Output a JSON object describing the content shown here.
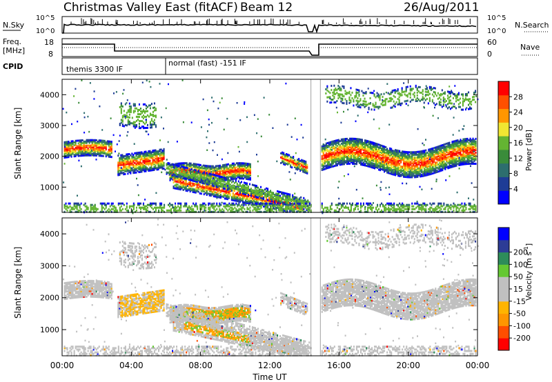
{
  "header": {
    "title": "Christmas Valley East (fitACF)",
    "beam": "Beam 12",
    "date": "26/Aug/2011"
  },
  "nsky_panel": {
    "left_label": "N.Sky",
    "right_label": "N.Search",
    "left_ticks": [
      "10^5",
      "10^0"
    ],
    "right_ticks": [
      "10^5",
      "10^0"
    ]
  },
  "freq_panel": {
    "left_label_1": "Freq.",
    "left_label_2": "[MHz]",
    "right_label": "Nave",
    "left_ticks": [
      "18",
      "8"
    ],
    "right_ticks": [
      "60",
      "0"
    ]
  },
  "cpid_panel": {
    "label": "CPID",
    "program_1": "themis 3300 IF",
    "program_2": "normal (fast) -151 IF"
  },
  "colors": {
    "power_scale": [
      "#0000ff",
      "#1e3c96",
      "#2d6e6e",
      "#3a8c3a",
      "#64b432",
      "#f0e632",
      "#ff9600",
      "#ff5000",
      "#ff0000"
    ],
    "velocity_scale": [
      "#ff0000",
      "#ff4e00",
      "#ff9600",
      "#ffb400",
      "#c0c0c0",
      "#c0c0c0",
      "#64c832",
      "#2d8c5a",
      "#2d3c96",
      "#0000ff"
    ]
  },
  "chart_data": [
    {
      "type": "heatmap",
      "panel": "power",
      "ylabel": "Slant Range [km]",
      "yticks": [
        "1000",
        "2000",
        "3000",
        "4000"
      ],
      "ylim": [
        180,
        4500
      ],
      "xlim": [
        0,
        24
      ],
      "colorbar_label": "Power [dB]",
      "colorbar_ticks": [
        "4",
        "8",
        "12",
        "16",
        "20",
        "24",
        "28"
      ],
      "colorbar_range": [
        0,
        32
      ]
    },
    {
      "type": "heatmap",
      "panel": "velocity",
      "ylabel": "Slant Range [km]",
      "yticks": [
        "1000",
        "2000",
        "3000",
        "4000"
      ],
      "ylim": [
        180,
        4500
      ],
      "xlim": [
        0,
        24
      ],
      "xlabel": "Time UT",
      "xticks": [
        "00:00",
        "04:00",
        "08:00",
        "12:00",
        "16:00",
        "20:00",
        "00:00"
      ],
      "colorbar_label": "Velocity [m s",
      "colorbar_label_exp": "-1",
      "colorbar_label_end": "]",
      "colorbar_ticks": [
        "-200",
        "-100",
        "-50",
        "-15",
        "15",
        "50",
        "100",
        "200"
      ]
    }
  ]
}
